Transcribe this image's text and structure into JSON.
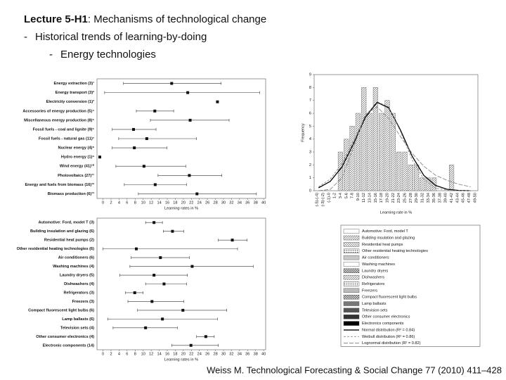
{
  "slide": {
    "title_bold": "Lecture 5-H1",
    "title_rest": ": Mechanisms of technological change",
    "bullet_marker": "-",
    "bullet1": "Historical trends of learning-by-doing",
    "bullet2": "Energy technologies",
    "citation": "Weiss M. Technological Forecasting & Social Change 77 (2010) 411–428"
  },
  "chart_data": [
    {
      "type": "dot_range",
      "xlabel": "Learning rates in %",
      "categories": [
        "Energy extraction (3)¹",
        "Energy transport (3)²",
        "Electricity conversion (1)³",
        "Accessories of energy production (5)⁴",
        "Miscellaneous energy production (8)⁵",
        "Fossil fuels - coal and lignite (9)⁶",
        "Fossil fuels - natural gas (11)⁷",
        "Nuclear energy (4)⁸",
        "Hydro energy (1)⁹",
        "Wind energy (41)¹⁰",
        "Photovoltaics (27)¹¹",
        "Energy and fuels from biomass (16)¹²",
        "Biomass production (6)¹³"
      ],
      "values": [
        17.1,
        21.1,
        28.5,
        12.9,
        21.7,
        7.6,
        10.9,
        7.8,
        -0.8,
        10.2,
        21.5,
        13,
        23.4
      ],
      "low": [
        5.1,
        0.4,
        null,
        8.3,
        11.8,
        2.3,
        3.9,
        2.3,
        null,
        3.2,
        13.7,
        5.3,
        8.8
      ],
      "high": [
        29.4,
        39,
        null,
        17.6,
        31.4,
        13.2,
        23.3,
        15.9,
        null,
        20.6,
        29.6,
        20.8,
        38.2
      ],
      "color": "#111",
      "xlim": [
        -1.5,
        40.5
      ],
      "xticks": [
        0,
        2,
        4,
        6,
        8,
        10,
        12,
        14,
        16,
        18,
        20,
        22,
        24,
        26,
        28,
        30,
        32,
        34,
        36,
        38,
        40
      ]
    },
    {
      "type": "dot_range",
      "xlabel": "Learning rates in %",
      "categories": [
        "Automotive: Ford, model T (3)",
        "Building insulation and glazing (6)",
        "Residential heat pumps (2)",
        "Other residential heating technologies (6)",
        "Air conditioners (6)",
        "Washing machines (4)",
        "Laundry dryers (5)",
        "Dishwashers (4)",
        "Refrigerators (3)",
        "Freezers (3)",
        "Compact fluorescent light bulbs (6)",
        "Lamp ballasts (6)",
        "Television sets (4)",
        "Other consumer electronics (4)",
        "Electronic components (14)"
      ],
      "values": [
        12.7,
        17.3,
        32.2,
        8.3,
        14.3,
        22.2,
        12.7,
        15.2,
        7.9,
        12.2,
        19.9,
        14.8,
        10.6,
        25.6,
        21.9
      ],
      "low": [
        10.6,
        15,
        28.7,
        0,
        7,
        6.7,
        4.2,
        10.6,
        5.6,
        6.2,
        8.6,
        1.2,
        2.5,
        23.3,
        17.1
      ],
      "high": [
        14.8,
        20.1,
        35.9,
        33.5,
        21.5,
        37.4,
        21,
        20.8,
        10,
        20.1,
        30.8,
        28.5,
        18.5,
        27.7,
        28.7
      ],
      "color": "#111",
      "xlim": [
        -1.5,
        40.5
      ],
      "xticks": [
        0,
        2,
        4,
        6,
        8,
        10,
        12,
        14,
        16,
        18,
        20,
        22,
        24,
        26,
        28,
        30,
        32,
        34,
        36,
        38,
        40
      ]
    },
    {
      "type": "histogram_fit",
      "ylabel": "Frequency",
      "xlabel": "Learning rate in %",
      "categories": [
        "(-5)-(-4)",
        "(-3)-(-2)",
        "(-1)-0",
        "1-2",
        "3-4",
        "5-6",
        "7-8",
        "9-10",
        "11-12",
        "13-14",
        "15-16",
        "17-18",
        "19-20",
        "21-22",
        "23-24",
        "25-26",
        "27-28",
        "29-30",
        "31-32",
        "33-34",
        "35-36",
        "37-38",
        "39-40",
        "41-42",
        "43-44",
        "45-46",
        "47-48",
        "49-50"
      ],
      "values": [
        0,
        0,
        0,
        0,
        3,
        4,
        5,
        6,
        8,
        6,
        8,
        6,
        7,
        6,
        3,
        3,
        2,
        2,
        1,
        1,
        1,
        0,
        0,
        2,
        0,
        0,
        0,
        0
      ],
      "color": "#777",
      "ylim": [
        0,
        9
      ],
      "yticks": [
        0,
        1,
        2,
        3,
        4,
        5,
        6,
        7,
        8,
        9
      ],
      "legend": [
        "Automotive: Ford, model T",
        "Building insulation and glazing",
        "Residential heat pumps",
        "Other residential heating technologies",
        "Air conditioners",
        "Washing machines",
        "Laundry dryers",
        "Dishwashers",
        "Refrigerators",
        "Freezers",
        "Compact fluorescent light bulbs",
        "Lamp ballasts",
        "Television sets",
        "Other consumer electronics",
        "Electronics components"
      ],
      "curve_x": [
        -4,
        0,
        4,
        8,
        12,
        16,
        20,
        24,
        28,
        32,
        36,
        40,
        44,
        48
      ],
      "curves": [
        {
          "name": "Normal distribution (R² = 0.84)",
          "color": "#000",
          "values": [
            0.22,
            0.72,
            1.84,
            3.66,
            5.68,
            6.85,
            6.43,
            4.71,
            2.68,
            1.19,
            0.41,
            0.11,
            0.02,
            0
          ]
        },
        {
          "name": "Weibull distribution (R² = 0.86)",
          "color": "#888",
          "values": [
            0.3,
            0.9,
            2.1,
            3.9,
            5.8,
            6.9,
            6.5,
            4.6,
            2.4,
            0.9,
            0.2,
            0.05,
            0,
            0
          ]
        },
        {
          "name": "Lognormal distribution (R² = 0.82)",
          "color": "#888",
          "values": [
            0,
            0.1,
            1,
            3.4,
            5.9,
            6.5,
            5.6,
            4.2,
            2.9,
            1.9,
            1.2,
            0.8,
            0.5,
            0.3
          ]
        }
      ]
    }
  ]
}
